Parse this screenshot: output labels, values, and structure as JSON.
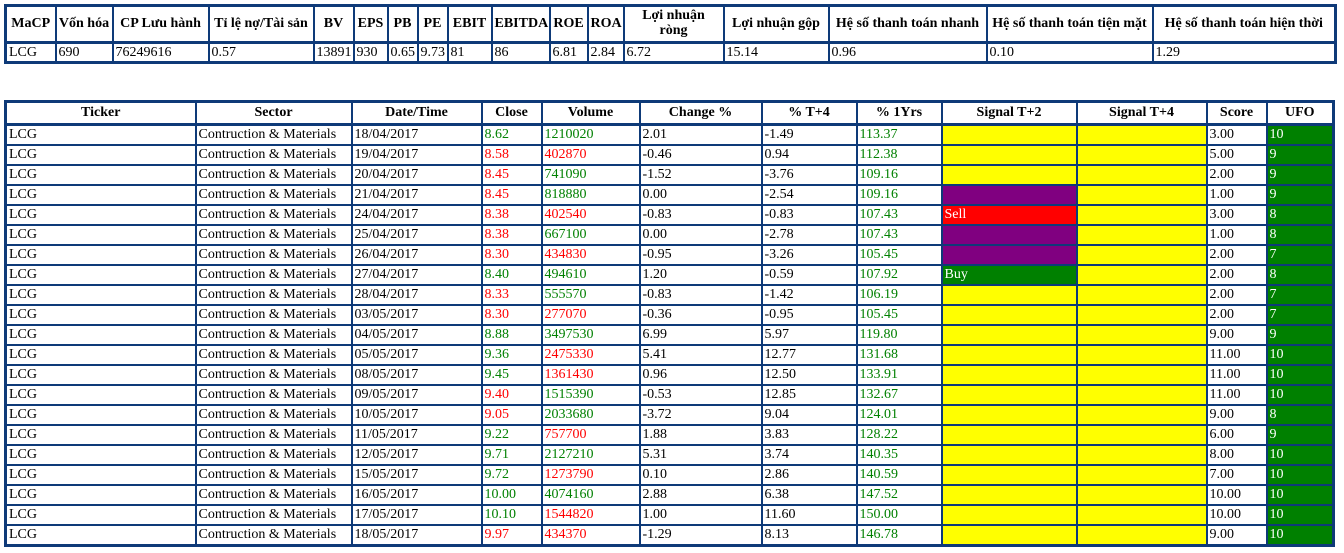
{
  "colors": {
    "border": "#0e3a78",
    "up": "#008000",
    "down": "#ff0000",
    "yellow": "#ffff00",
    "purple": "#800080",
    "buy_bg": "#008000",
    "sell_bg": "#ff0000",
    "ufo_bg": "#008000",
    "ufo_text": "#ffffff"
  },
  "summary_table": {
    "headers": [
      "MaCP",
      "Vốn hóa",
      "CP Lưu hành",
      "Tỉ lệ nợ/Tài sản",
      "BV",
      "EPS",
      "PB",
      "PE",
      "EBIT",
      "EBITDA",
      "ROE",
      "ROA",
      "Lợi nhuận ròng",
      "Lợi nhuận gộp",
      "Hệ số thanh toán nhanh",
      "Hệ số thanh toán tiện mặt",
      "Hệ số thanh toán hiện thời"
    ],
    "values": [
      "LCG",
      "690",
      "76249616",
      "0.57",
      "13891",
      "930",
      "0.65",
      "9.73",
      "81",
      "86",
      "6.81",
      "2.84",
      "6.72",
      "15.14",
      "0.96",
      "0.10",
      "1.29"
    ]
  },
  "signal_table": {
    "headers": [
      "Ticker",
      "Sector",
      "Date/Time",
      "Close",
      "Volume",
      "Change %",
      "% T+4",
      "% 1Yrs",
      "Signal T+2",
      "Signal T+4",
      "Score",
      "UFO"
    ],
    "rows": [
      {
        "ticker": "LCG",
        "sector": "Contruction & Materials",
        "date": "18/04/2017",
        "close": "8.62",
        "close_dir": "up",
        "volume": "1210020",
        "volume_dir": "up",
        "change": "2.01",
        "t4": "-1.49",
        "yrs": "113.37",
        "signal_t2": "yellow",
        "signal_t2_label": "",
        "signal_t4": "yellow",
        "score": "3.00",
        "ufo": "10"
      },
      {
        "ticker": "LCG",
        "sector": "Contruction & Materials",
        "date": "19/04/2017",
        "close": "8.58",
        "close_dir": "down",
        "volume": "402870",
        "volume_dir": "down",
        "change": "-0.46",
        "t4": "0.94",
        "yrs": "112.38",
        "signal_t2": "yellow",
        "signal_t2_label": "",
        "signal_t4": "yellow",
        "score": "5.00",
        "ufo": "9"
      },
      {
        "ticker": "LCG",
        "sector": "Contruction & Materials",
        "date": "20/04/2017",
        "close": "8.45",
        "close_dir": "down",
        "volume": "741090",
        "volume_dir": "up",
        "change": "-1.52",
        "t4": "-3.76",
        "yrs": "109.16",
        "signal_t2": "yellow",
        "signal_t2_label": "",
        "signal_t4": "yellow",
        "score": "2.00",
        "ufo": "9"
      },
      {
        "ticker": "LCG",
        "sector": "Contruction & Materials",
        "date": "21/04/2017",
        "close": "8.45",
        "close_dir": "down",
        "volume": "818880",
        "volume_dir": "up",
        "change": "0.00",
        "t4": "-2.54",
        "yrs": "109.16",
        "signal_t2": "purple",
        "signal_t2_label": "",
        "signal_t4": "yellow",
        "score": "1.00",
        "ufo": "9"
      },
      {
        "ticker": "LCG",
        "sector": "Contruction & Materials",
        "date": "24/04/2017",
        "close": "8.38",
        "close_dir": "down",
        "volume": "402540",
        "volume_dir": "down",
        "change": "-0.83",
        "t4": "-0.83",
        "yrs": "107.43",
        "signal_t2": "sell",
        "signal_t2_label": "Sell",
        "signal_t4": "yellow",
        "score": "3.00",
        "ufo": "8"
      },
      {
        "ticker": "LCG",
        "sector": "Contruction & Materials",
        "date": "25/04/2017",
        "close": "8.38",
        "close_dir": "down",
        "volume": "667100",
        "volume_dir": "up",
        "change": "0.00",
        "t4": "-2.78",
        "yrs": "107.43",
        "signal_t2": "purple",
        "signal_t2_label": "",
        "signal_t4": "yellow",
        "score": "1.00",
        "ufo": "8"
      },
      {
        "ticker": "LCG",
        "sector": "Contruction & Materials",
        "date": "26/04/2017",
        "close": "8.30",
        "close_dir": "down",
        "volume": "434830",
        "volume_dir": "down",
        "change": "-0.95",
        "t4": "-3.26",
        "yrs": "105.45",
        "signal_t2": "purple",
        "signal_t2_label": "",
        "signal_t4": "yellow",
        "score": "2.00",
        "ufo": "7"
      },
      {
        "ticker": "LCG",
        "sector": "Contruction & Materials",
        "date": "27/04/2017",
        "close": "8.40",
        "close_dir": "up",
        "volume": "494610",
        "volume_dir": "up",
        "change": "1.20",
        "t4": "-0.59",
        "yrs": "107.92",
        "signal_t2": "buy",
        "signal_t2_label": "Buy",
        "signal_t4": "yellow",
        "score": "2.00",
        "ufo": "8"
      },
      {
        "ticker": "LCG",
        "sector": "Contruction & Materials",
        "date": "28/04/2017",
        "close": "8.33",
        "close_dir": "down",
        "volume": "555570",
        "volume_dir": "up",
        "change": "-0.83",
        "t4": "-1.42",
        "yrs": "106.19",
        "signal_t2": "yellow",
        "signal_t2_label": "",
        "signal_t4": "yellow",
        "score": "2.00",
        "ufo": "7"
      },
      {
        "ticker": "LCG",
        "sector": "Contruction & Materials",
        "date": "03/05/2017",
        "close": "8.30",
        "close_dir": "down",
        "volume": "277070",
        "volume_dir": "down",
        "change": "-0.36",
        "t4": "-0.95",
        "yrs": "105.45",
        "signal_t2": "yellow",
        "signal_t2_label": "",
        "signal_t4": "yellow",
        "score": "2.00",
        "ufo": "7"
      },
      {
        "ticker": "LCG",
        "sector": "Contruction & Materials",
        "date": "04/05/2017",
        "close": "8.88",
        "close_dir": "up",
        "volume": "3497530",
        "volume_dir": "up",
        "change": "6.99",
        "t4": "5.97",
        "yrs": "119.80",
        "signal_t2": "yellow",
        "signal_t2_label": "",
        "signal_t4": "yellow",
        "score": "9.00",
        "ufo": "9"
      },
      {
        "ticker": "LCG",
        "sector": "Contruction & Materials",
        "date": "05/05/2017",
        "close": "9.36",
        "close_dir": "up",
        "volume": "2475330",
        "volume_dir": "down",
        "change": "5.41",
        "t4": "12.77",
        "yrs": "131.68",
        "signal_t2": "yellow",
        "signal_t2_label": "",
        "signal_t4": "yellow",
        "score": "11.00",
        "ufo": "10"
      },
      {
        "ticker": "LCG",
        "sector": "Contruction & Materials",
        "date": "08/05/2017",
        "close": "9.45",
        "close_dir": "up",
        "volume": "1361430",
        "volume_dir": "down",
        "change": "0.96",
        "t4": "12.50",
        "yrs": "133.91",
        "signal_t2": "yellow",
        "signal_t2_label": "",
        "signal_t4": "yellow",
        "score": "11.00",
        "ufo": "10"
      },
      {
        "ticker": "LCG",
        "sector": "Contruction & Materials",
        "date": "09/05/2017",
        "close": "9.40",
        "close_dir": "down",
        "volume": "1515390",
        "volume_dir": "up",
        "change": "-0.53",
        "t4": "12.85",
        "yrs": "132.67",
        "signal_t2": "yellow",
        "signal_t2_label": "",
        "signal_t4": "yellow",
        "score": "11.00",
        "ufo": "10"
      },
      {
        "ticker": "LCG",
        "sector": "Contruction & Materials",
        "date": "10/05/2017",
        "close": "9.05",
        "close_dir": "down",
        "volume": "2033680",
        "volume_dir": "up",
        "change": "-3.72",
        "t4": "9.04",
        "yrs": "124.01",
        "signal_t2": "yellow",
        "signal_t2_label": "",
        "signal_t4": "yellow",
        "score": "9.00",
        "ufo": "8"
      },
      {
        "ticker": "LCG",
        "sector": "Contruction & Materials",
        "date": "11/05/2017",
        "close": "9.22",
        "close_dir": "up",
        "volume": "757700",
        "volume_dir": "down",
        "change": "1.88",
        "t4": "3.83",
        "yrs": "128.22",
        "signal_t2": "yellow",
        "signal_t2_label": "",
        "signal_t4": "yellow",
        "score": "6.00",
        "ufo": "9"
      },
      {
        "ticker": "LCG",
        "sector": "Contruction & Materials",
        "date": "12/05/2017",
        "close": "9.71",
        "close_dir": "up",
        "volume": "2127210",
        "volume_dir": "up",
        "change": "5.31",
        "t4": "3.74",
        "yrs": "140.35",
        "signal_t2": "yellow",
        "signal_t2_label": "",
        "signal_t4": "yellow",
        "score": "8.00",
        "ufo": "10"
      },
      {
        "ticker": "LCG",
        "sector": "Contruction & Materials",
        "date": "15/05/2017",
        "close": "9.72",
        "close_dir": "up",
        "volume": "1273790",
        "volume_dir": "down",
        "change": "0.10",
        "t4": "2.86",
        "yrs": "140.59",
        "signal_t2": "yellow",
        "signal_t2_label": "",
        "signal_t4": "yellow",
        "score": "7.00",
        "ufo": "10"
      },
      {
        "ticker": "LCG",
        "sector": "Contruction & Materials",
        "date": "16/05/2017",
        "close": "10.00",
        "close_dir": "up",
        "volume": "4074160",
        "volume_dir": "up",
        "change": "2.88",
        "t4": "6.38",
        "yrs": "147.52",
        "signal_t2": "yellow",
        "signal_t2_label": "",
        "signal_t4": "yellow",
        "score": "10.00",
        "ufo": "10"
      },
      {
        "ticker": "LCG",
        "sector": "Contruction & Materials",
        "date": "17/05/2017",
        "close": "10.10",
        "close_dir": "up",
        "volume": "1544820",
        "volume_dir": "down",
        "change": "1.00",
        "t4": "11.60",
        "yrs": "150.00",
        "signal_t2": "yellow",
        "signal_t2_label": "",
        "signal_t4": "yellow",
        "score": "10.00",
        "ufo": "10"
      },
      {
        "ticker": "LCG",
        "sector": "Contruction & Materials",
        "date": "18/05/2017",
        "close": "9.97",
        "close_dir": "down",
        "volume": "434370",
        "volume_dir": "down",
        "change": "-1.29",
        "t4": "8.13",
        "yrs": "146.78",
        "signal_t2": "yellow",
        "signal_t2_label": "",
        "signal_t4": "yellow",
        "score": "9.00",
        "ufo": "10"
      }
    ]
  }
}
